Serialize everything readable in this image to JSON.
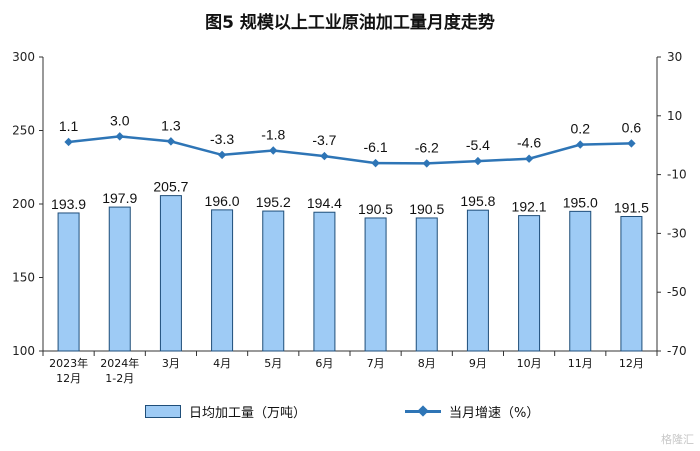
{
  "title": "图5  规模以上工业原油加工量月度走势",
  "watermark": "格隆汇",
  "chart_data": {
    "type": "bar",
    "categories": [
      [
        "2023年",
        "12月"
      ],
      [
        "2024年",
        "1-2月"
      ],
      [
        "3月"
      ],
      [
        "4月"
      ],
      [
        "5月"
      ],
      [
        "6月"
      ],
      [
        "7月"
      ],
      [
        "8月"
      ],
      [
        "9月"
      ],
      [
        "10月"
      ],
      [
        "11月"
      ],
      [
        "12月"
      ]
    ],
    "series": [
      {
        "name": "日均加工量（万吨）",
        "type": "bar",
        "axis": "left",
        "color": "#9ECBF5",
        "values": [
          193.9,
          197.9,
          205.7,
          196.0,
          195.2,
          194.4,
          190.5,
          190.5,
          195.8,
          192.1,
          195.0,
          191.5
        ],
        "labels": [
          "193.9",
          "197.9",
          "205.7",
          "196.0",
          "195.2",
          "194.4",
          "190.5",
          "190.5",
          "195.8",
          "192.1",
          "195.0",
          "191.5"
        ]
      },
      {
        "name": "当月增速（%）",
        "type": "line",
        "axis": "right",
        "color": "#2E75B6",
        "values": [
          1.1,
          3.0,
          1.3,
          -3.3,
          -1.8,
          -3.7,
          -6.1,
          -6.2,
          -5.4,
          -4.6,
          0.2,
          0.6
        ],
        "labels": [
          "1.1",
          "3.0",
          "1.3",
          "-3.3",
          "-1.8",
          "-3.7",
          "-6.1",
          "-6.2",
          "-5.4",
          "-4.6",
          "0.2",
          "0.6"
        ]
      }
    ],
    "y_left": {
      "min": 100,
      "max": 300,
      "ticks": [
        "100",
        "150",
        "200",
        "250",
        "300"
      ]
    },
    "y_right": {
      "min": -70,
      "max": 30,
      "ticks": [
        "-70",
        "-50",
        "-30",
        "-10",
        "10",
        "30"
      ]
    },
    "grid": false,
    "legend_position": "bottom"
  }
}
